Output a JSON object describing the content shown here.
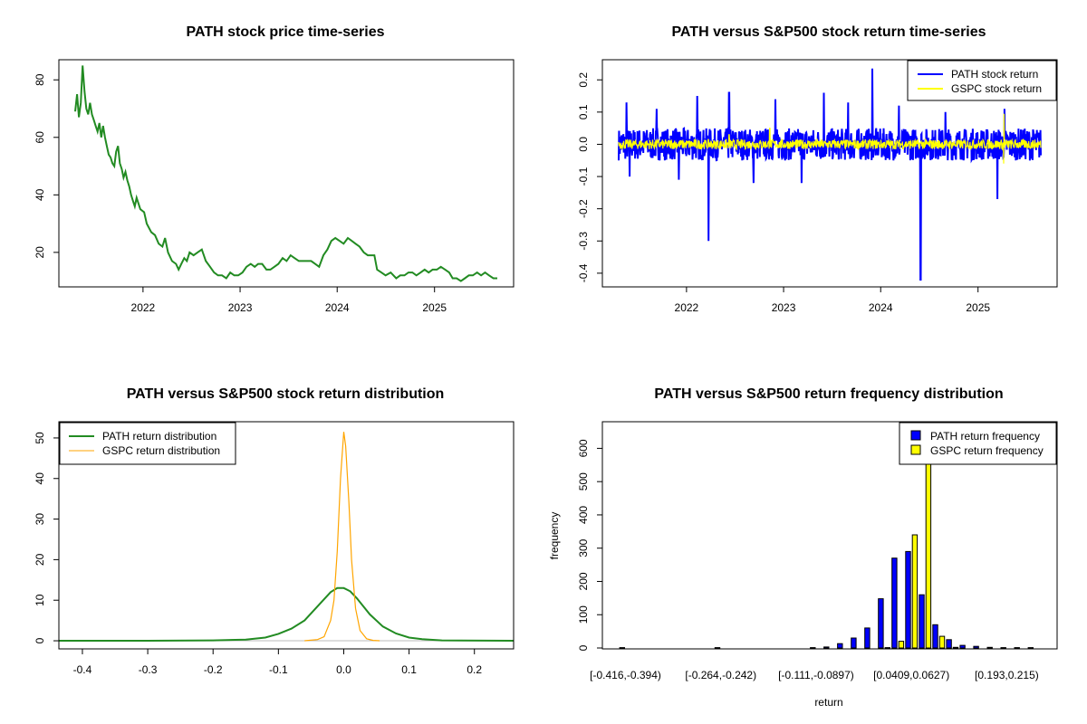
{
  "chart_data": [
    {
      "type": "line",
      "title": "PATH stock price time-series",
      "xlabel": "",
      "ylabel": "",
      "xlim": [
        "2021-04-21",
        "2025-08-25"
      ],
      "ylim": [
        8,
        87
      ],
      "xticks": [
        "2022",
        "2023",
        "2024",
        "2025"
      ],
      "yticks": [
        20,
        40,
        60,
        80
      ],
      "series": [
        {
          "color": "#228B22",
          "points": [
            [
              "2021-04-21",
              69
            ],
            [
              "2021-04-28",
              75
            ],
            [
              "2021-05-05",
              67
            ],
            [
              "2021-05-12",
              72
            ],
            [
              "2021-05-19",
              85
            ],
            [
              "2021-05-26",
              76
            ],
            [
              "2021-06-02",
              70
            ],
            [
              "2021-06-09",
              68
            ],
            [
              "2021-06-16",
              72
            ],
            [
              "2021-06-23",
              68
            ],
            [
              "2021-06-30",
              66
            ],
            [
              "2021-07-07",
              64
            ],
            [
              "2021-07-14",
              62
            ],
            [
              "2021-07-21",
              65
            ],
            [
              "2021-07-28",
              60
            ],
            [
              "2021-08-04",
              64
            ],
            [
              "2021-08-11",
              60
            ],
            [
              "2021-08-18",
              57
            ],
            [
              "2021-08-25",
              54
            ],
            [
              "2021-09-01",
              53
            ],
            [
              "2021-09-08",
              51
            ],
            [
              "2021-09-15",
              50
            ],
            [
              "2021-09-22",
              55
            ],
            [
              "2021-09-29",
              57
            ],
            [
              "2021-10-06",
              51
            ],
            [
              "2021-10-13",
              49
            ],
            [
              "2021-10-20",
              46
            ],
            [
              "2021-10-27",
              48
            ],
            [
              "2021-11-03",
              45
            ],
            [
              "2021-11-10",
              43
            ],
            [
              "2021-11-17",
              40
            ],
            [
              "2021-11-24",
              38
            ],
            [
              "2021-12-01",
              36
            ],
            [
              "2021-12-08",
              39
            ],
            [
              "2021-12-15",
              37
            ],
            [
              "2021-12-22",
              35
            ],
            [
              "2022-01-05",
              34
            ],
            [
              "2022-01-15",
              30
            ],
            [
              "2022-02-01",
              27
            ],
            [
              "2022-02-15",
              26
            ],
            [
              "2022-03-01",
              23
            ],
            [
              "2022-03-15",
              22
            ],
            [
              "2022-03-25",
              25
            ],
            [
              "2022-04-05",
              20
            ],
            [
              "2022-04-20",
              17
            ],
            [
              "2022-05-05",
              16
            ],
            [
              "2022-05-15",
              14
            ],
            [
              "2022-05-25",
              16
            ],
            [
              "2022-06-05",
              18
            ],
            [
              "2022-06-15",
              17
            ],
            [
              "2022-06-25",
              20
            ],
            [
              "2022-07-10",
              19
            ],
            [
              "2022-07-25",
              20
            ],
            [
              "2022-08-10",
              21
            ],
            [
              "2022-08-25",
              17
            ],
            [
              "2022-09-10",
              15
            ],
            [
              "2022-09-25",
              13
            ],
            [
              "2022-10-10",
              12
            ],
            [
              "2022-10-25",
              12
            ],
            [
              "2022-11-10",
              11
            ],
            [
              "2022-11-25",
              13
            ],
            [
              "2022-12-10",
              12
            ],
            [
              "2022-12-25",
              12
            ],
            [
              "2023-01-10",
              13
            ],
            [
              "2023-01-25",
              15
            ],
            [
              "2023-02-10",
              16
            ],
            [
              "2023-02-25",
              15
            ],
            [
              "2023-03-10",
              16
            ],
            [
              "2023-03-25",
              16
            ],
            [
              "2023-04-10",
              14
            ],
            [
              "2023-04-25",
              14
            ],
            [
              "2023-05-10",
              15
            ],
            [
              "2023-05-25",
              16
            ],
            [
              "2023-06-10",
              18
            ],
            [
              "2023-06-25",
              17
            ],
            [
              "2023-07-10",
              19
            ],
            [
              "2023-07-25",
              18
            ],
            [
              "2023-08-10",
              17
            ],
            [
              "2023-08-25",
              17
            ],
            [
              "2023-09-10",
              17
            ],
            [
              "2023-09-25",
              17
            ],
            [
              "2023-10-10",
              16
            ],
            [
              "2023-10-25",
              15
            ],
            [
              "2023-11-10",
              19
            ],
            [
              "2023-11-25",
              21
            ],
            [
              "2023-12-10",
              24
            ],
            [
              "2023-12-25",
              25
            ],
            [
              "2024-01-10",
              24
            ],
            [
              "2024-01-25",
              23
            ],
            [
              "2024-02-10",
              25
            ],
            [
              "2024-02-25",
              24
            ],
            [
              "2024-03-10",
              23
            ],
            [
              "2024-03-25",
              22
            ],
            [
              "2024-04-10",
              20
            ],
            [
              "2024-04-25",
              19
            ],
            [
              "2024-05-10",
              19
            ],
            [
              "2024-05-20",
              19
            ],
            [
              "2024-05-30",
              14
            ],
            [
              "2024-06-15",
              13
            ],
            [
              "2024-07-01",
              12
            ],
            [
              "2024-07-20",
              13
            ],
            [
              "2024-08-10",
              11
            ],
            [
              "2024-08-25",
              12
            ],
            [
              "2024-09-10",
              12
            ],
            [
              "2024-09-25",
              13
            ],
            [
              "2024-10-10",
              13
            ],
            [
              "2024-10-25",
              12
            ],
            [
              "2024-11-10",
              13
            ],
            [
              "2024-11-25",
              14
            ],
            [
              "2024-12-10",
              13
            ],
            [
              "2024-12-25",
              14
            ],
            [
              "2025-01-10",
              14
            ],
            [
              "2025-01-25",
              15
            ],
            [
              "2025-02-10",
              14
            ],
            [
              "2025-02-25",
              13
            ],
            [
              "2025-03-10",
              11
            ],
            [
              "2025-03-25",
              11
            ],
            [
              "2025-04-10",
              10
            ],
            [
              "2025-04-25",
              11
            ],
            [
              "2025-05-10",
              12
            ],
            [
              "2025-05-25",
              12
            ],
            [
              "2025-06-10",
              13
            ],
            [
              "2025-06-25",
              12
            ],
            [
              "2025-07-10",
              13
            ],
            [
              "2025-07-25",
              12
            ],
            [
              "2025-08-10",
              11
            ],
            [
              "2025-08-25",
              11
            ]
          ]
        }
      ]
    },
    {
      "type": "line",
      "title": "PATH versus S&P500 stock return time-series",
      "xlabel": "",
      "ylabel": "",
      "xlim": [
        "2021-04-21",
        "2025-08-25"
      ],
      "ylim": [
        -0.42,
        0.24
      ],
      "xticks": [
        "2022",
        "2023",
        "2024",
        "2025"
      ],
      "yticks": [
        -0.4,
        -0.3,
        -0.2,
        -0.1,
        0.0,
        0.1,
        0.2
      ],
      "ytick_labels": [
        "-0.4",
        "-0.3",
        "-0.2",
        "-0.1",
        "0.0",
        "0.1",
        "0.2"
      ],
      "legend": {
        "position": "top-right"
      },
      "series": [
        {
          "name": "PATH stock return",
          "color": "#0000FF",
          "noise_band": 0.05,
          "spikes": [
            [
              "2021-05-20",
              0.13
            ],
            [
              "2021-06-01",
              -0.1
            ],
            [
              "2021-09-10",
              0.11
            ],
            [
              "2021-12-03",
              -0.11
            ],
            [
              "2022-02-10",
              0.15
            ],
            [
              "2022-03-25",
              -0.3
            ],
            [
              "2022-06-10",
              0.16
            ],
            [
              "2022-09-10",
              -0.12
            ],
            [
              "2022-12-01",
              0.14
            ],
            [
              "2023-03-10",
              -0.12
            ],
            [
              "2023-06-01",
              0.16
            ],
            [
              "2023-09-01",
              0.13
            ],
            [
              "2023-12-01",
              0.235
            ],
            [
              "2024-03-10",
              0.12
            ],
            [
              "2024-05-30",
              -0.42
            ],
            [
              "2024-09-01",
              0.1
            ],
            [
              "2025-03-15",
              -0.17
            ],
            [
              "2025-04-10",
              0.11
            ]
          ]
        },
        {
          "name": "GSPC stock return",
          "color": "#FFFF00",
          "noise_band": 0.015,
          "spikes": [
            [
              "2022-06-10",
              0.03
            ],
            [
              "2022-11-10",
              0.05
            ],
            [
              "2025-04-08",
              -0.06
            ],
            [
              "2025-04-09",
              0.095
            ]
          ]
        }
      ]
    },
    {
      "type": "line",
      "title": "PATH versus S&P500 stock return distribution",
      "xlabel": "",
      "ylabel": "",
      "xlim": [
        -0.436,
        0.26
      ],
      "ylim": [
        -2,
        54
      ],
      "xticks": [
        -0.4,
        -0.3,
        -0.2,
        -0.1,
        0.0,
        0.1,
        0.2
      ],
      "xtick_labels": [
        "-0.4",
        "-0.3",
        "-0.2",
        "-0.1",
        "0.0",
        "0.1",
        "0.2"
      ],
      "yticks": [
        0,
        10,
        20,
        30,
        40,
        50
      ],
      "legend": {
        "position": "top-left"
      },
      "series": [
        {
          "name": "PATH return distribution",
          "color": "#228B22",
          "x": [
            -0.436,
            -0.3,
            -0.2,
            -0.15,
            -0.12,
            -0.1,
            -0.08,
            -0.06,
            -0.04,
            -0.02,
            -0.01,
            0.0,
            0.01,
            0.02,
            0.04,
            0.06,
            0.08,
            0.1,
            0.12,
            0.15,
            0.26
          ],
          "y": [
            0,
            0,
            0.1,
            0.3,
            0.8,
            1.7,
            3.0,
            5.0,
            8.5,
            12.0,
            13.0,
            13.0,
            12.2,
            10.5,
            6.5,
            3.5,
            1.8,
            0.8,
            0.4,
            0.1,
            0
          ]
        },
        {
          "name": "GSPC return distribution",
          "color": "#FFA500",
          "x": [
            -0.06,
            -0.04,
            -0.03,
            -0.02,
            -0.015,
            -0.01,
            -0.005,
            0.0,
            0.003,
            0.008,
            0.012,
            0.018,
            0.025,
            0.035,
            0.045,
            0.055
          ],
          "y": [
            0,
            0.3,
            1.0,
            5.0,
            10.0,
            22.0,
            40.0,
            51.5,
            48.0,
            34.0,
            20.0,
            8.0,
            2.5,
            0.5,
            0.1,
            0
          ]
        }
      ]
    },
    {
      "type": "bar",
      "title": "PATH versus S&P500 return frequency distribution",
      "xlabel": "return",
      "ylabel": "frequency",
      "ylim": [
        0,
        680
      ],
      "yticks": [
        0,
        100,
        200,
        300,
        400,
        500,
        600
      ],
      "xtick_labels": [
        "[-0.416,-0.394)",
        "[-0.264,-0.242)",
        "[-0.111,-0.0897)",
        "[0.0409,0.0627)",
        "[0.193,0.215)"
      ],
      "xtick_bin_index": [
        0,
        7,
        14,
        21,
        28
      ],
      "bins": 31,
      "legend": {
        "position": "top-right"
      },
      "series": [
        {
          "name": "PATH return frequency",
          "color": "#0000FF",
          "values": [
            1,
            0,
            0,
            0,
            0,
            0,
            0,
            1,
            0,
            0,
            0,
            0,
            0,
            0,
            1,
            3,
            13,
            30,
            60,
            148,
            270,
            290,
            160,
            70,
            25,
            8,
            5,
            2,
            1,
            1,
            1
          ]
        },
        {
          "name": "GSPC return frequency",
          "color": "#FFFF00",
          "values": [
            0,
            0,
            0,
            0,
            0,
            0,
            0,
            0,
            0,
            0,
            0,
            0,
            0,
            0,
            0,
            0,
            0,
            0,
            0,
            1,
            20,
            340,
            720,
            35,
            2,
            0,
            0,
            0,
            0,
            0,
            0
          ]
        }
      ]
    }
  ]
}
